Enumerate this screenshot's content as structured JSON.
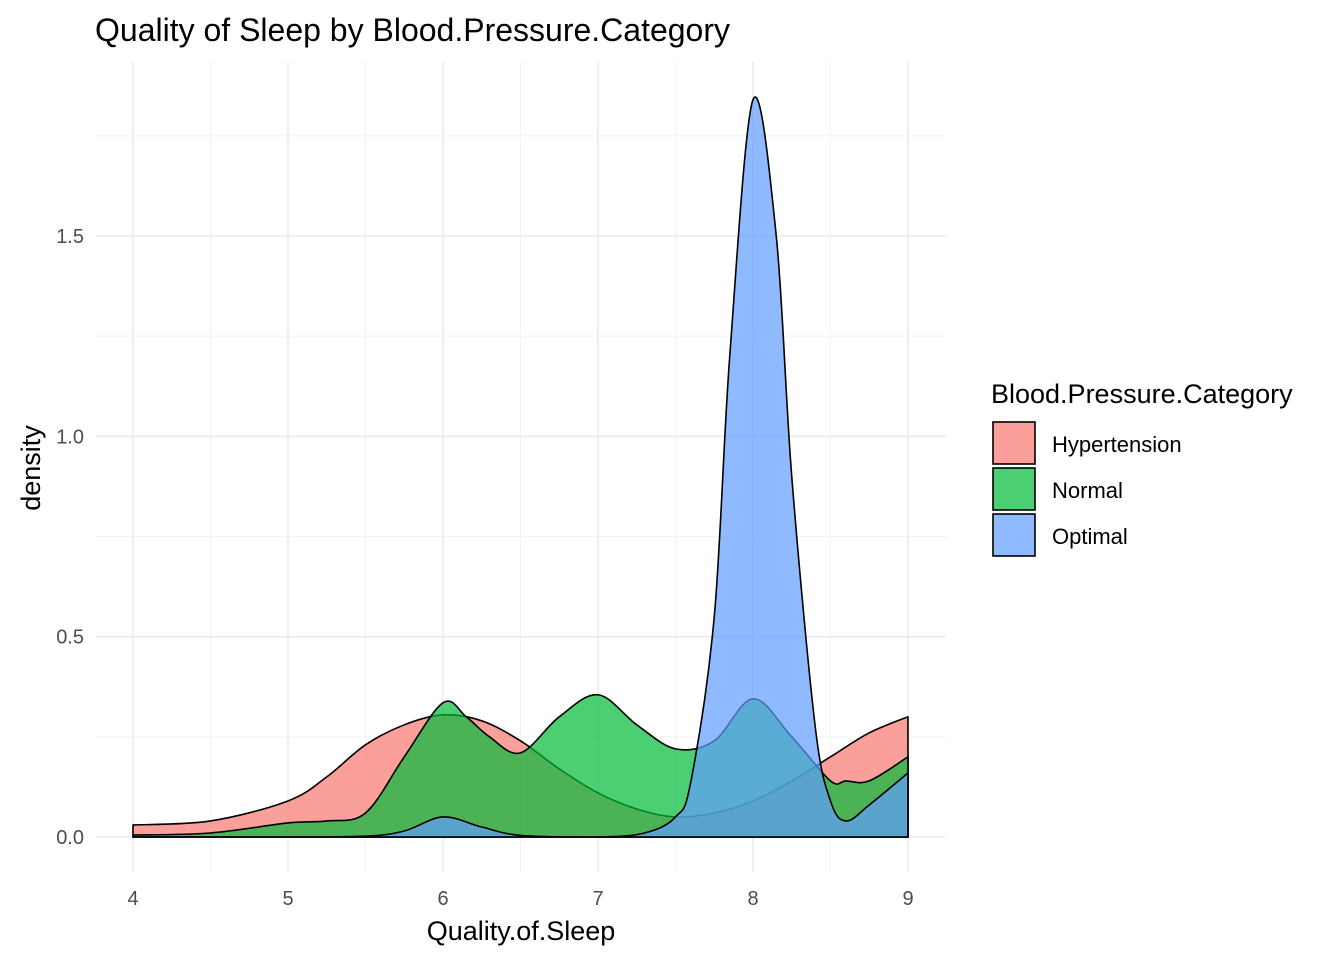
{
  "chart_data": {
    "type": "area",
    "subtype": "density",
    "title": "Quality of Sleep by Blood.Pressure.Category",
    "xlabel": "Quality.of.Sleep",
    "ylabel": "density",
    "xlim": [
      4,
      9
    ],
    "ylim": [
      0,
      1.85
    ],
    "x_ticks": [
      4,
      5,
      6,
      7,
      8,
      9
    ],
    "y_ticks": [
      0.0,
      0.5,
      1.0,
      1.5
    ],
    "x_tick_labels": [
      "4",
      "5",
      "6",
      "7",
      "8",
      "9"
    ],
    "y_tick_labels": [
      "0.0",
      "0.5",
      "1.0",
      "1.5"
    ],
    "grid": true,
    "legend": {
      "title": "Blood.Pressure.Category",
      "position": "right"
    },
    "series": [
      {
        "name": "Hypertension",
        "color": "#F8766D",
        "x": [
          4.0,
          4.5,
          5.0,
          5.25,
          5.5,
          5.75,
          6.0,
          6.25,
          6.5,
          6.75,
          7.0,
          7.25,
          7.5,
          7.75,
          8.0,
          8.25,
          8.5,
          8.75,
          9.0
        ],
        "y": [
          0.03,
          0.04,
          0.09,
          0.15,
          0.23,
          0.28,
          0.305,
          0.29,
          0.24,
          0.17,
          0.11,
          0.07,
          0.05,
          0.06,
          0.09,
          0.14,
          0.2,
          0.26,
          0.3
        ]
      },
      {
        "name": "Normal",
        "color": "#00BA38",
        "x": [
          4.0,
          4.5,
          5.0,
          5.25,
          5.5,
          5.75,
          6.0,
          6.15,
          6.3,
          6.5,
          6.75,
          7.0,
          7.25,
          7.5,
          7.75,
          8.0,
          8.25,
          8.5,
          8.6,
          8.75,
          9.0
        ],
        "y": [
          0.005,
          0.01,
          0.035,
          0.04,
          0.06,
          0.2,
          0.335,
          0.3,
          0.25,
          0.21,
          0.3,
          0.355,
          0.28,
          0.22,
          0.24,
          0.345,
          0.25,
          0.14,
          0.14,
          0.14,
          0.2
        ]
      },
      {
        "name": "Optimal",
        "color": "#619CFF",
        "x": [
          4.0,
          5.0,
          5.5,
          5.75,
          6.0,
          6.25,
          6.5,
          7.0,
          7.3,
          7.5,
          7.6,
          7.75,
          7.85,
          8.0,
          8.15,
          8.25,
          8.4,
          8.5,
          8.6,
          8.75,
          9.0
        ],
        "y": [
          0.0,
          0.0,
          0.002,
          0.015,
          0.05,
          0.025,
          0.004,
          0.0,
          0.01,
          0.05,
          0.14,
          0.55,
          1.2,
          1.84,
          1.5,
          0.9,
          0.28,
          0.09,
          0.04,
          0.08,
          0.16
        ]
      }
    ]
  }
}
